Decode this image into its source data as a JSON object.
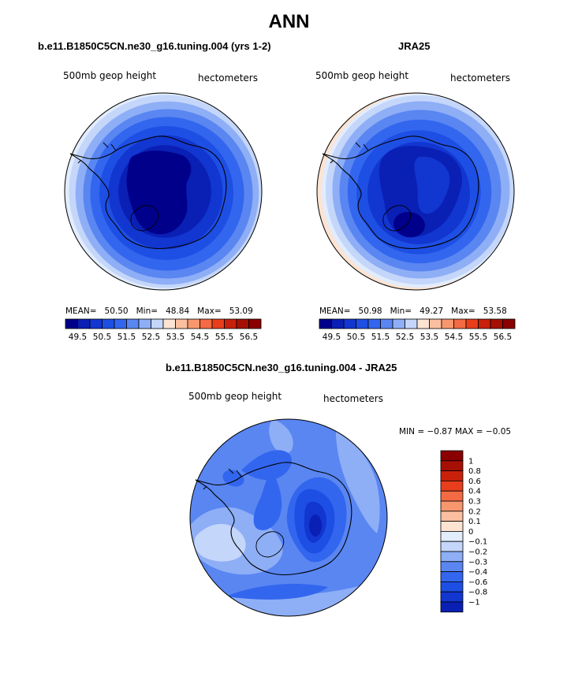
{
  "title": "ANN",
  "colors": {
    "blues": [
      "#00008b",
      "#0a1fb4",
      "#1236d0",
      "#1e4fe4",
      "#3366ee",
      "#5a86f2",
      "#8eaef6",
      "#c4d6fa",
      "#e1ecfd"
    ],
    "reds": [
      "#fde3d2",
      "#fbbfa0",
      "#f8976e",
      "#f36a43",
      "#e83e1c",
      "#c8200a",
      "#a61004",
      "#8a0000"
    ],
    "land_outline": "#000000"
  },
  "panels": [
    {
      "title": "b.e11.B1850C5CN.ne30_g16.tuning.004 (yrs 1-2)",
      "variable_label": "500mb geop height",
      "units_label": "hectometers",
      "mean_label": "MEAN=",
      "mean": "50.50",
      "min_label": "Min=",
      "min": "48.84",
      "max_label": "Max=",
      "max": "53.09"
    },
    {
      "title": "JRA25",
      "variable_label": "500mb geop height",
      "units_label": "hectometers",
      "mean_label": "MEAN=",
      "mean": "50.98",
      "min_label": "Min=",
      "min": "49.27",
      "max_label": "Max=",
      "max": "53.58"
    },
    {
      "title": "b.e11.B1850C5CN.ne30_g16.tuning.004 - JRA25",
      "variable_label": "500mb geop height",
      "units_label": "hectometers",
      "minmax_text": "MIN =  −0.87  MAX =  −0.05"
    }
  ],
  "chart_data": [
    {
      "type": "heatmap",
      "title": "b.e11.B1850C5CN.ne30_g16.tuning.004 (yrs 1-2)",
      "projection": "south polar stereographic",
      "variable": "500mb geop height",
      "units": "hectometers",
      "mean": 50.5,
      "min": 48.84,
      "max": 53.09,
      "contour_levels": [
        49.5,
        50,
        50.5,
        51,
        51.5,
        52,
        52.5,
        53,
        53.5,
        54,
        54.5,
        55,
        55.5,
        56,
        56.5
      ],
      "colorbar_tick_labels": [
        "49.5",
        "50.5",
        "51.5",
        "52.5",
        "53.5",
        "54.5",
        "55.5",
        "56.5"
      ]
    },
    {
      "type": "heatmap",
      "title": "JRA25",
      "projection": "south polar stereographic",
      "variable": "500mb geop height",
      "units": "hectometers",
      "mean": 50.98,
      "min": 49.27,
      "max": 53.58,
      "contour_levels": [
        49.5,
        50,
        50.5,
        51,
        51.5,
        52,
        52.5,
        53,
        53.5,
        54,
        54.5,
        55,
        55.5,
        56,
        56.5
      ],
      "colorbar_tick_labels": [
        "49.5",
        "50.5",
        "51.5",
        "52.5",
        "53.5",
        "54.5",
        "55.5",
        "56.5"
      ]
    },
    {
      "type": "heatmap",
      "title": "b.e11.B1850C5CN.ne30_g16.tuning.004 - JRA25",
      "projection": "south polar stereographic",
      "variable": "500mb geop height",
      "units": "hectometers",
      "min": -0.87,
      "max": -0.05,
      "contour_levels": [
        -1,
        -0.8,
        -0.6,
        -0.4,
        -0.3,
        -0.2,
        -0.1,
        0,
        0.1,
        0.2,
        0.3,
        0.4,
        0.6,
        0.8,
        1
      ],
      "colorbar_tick_labels": [
        "1",
        "0.8",
        "0.6",
        "0.4",
        "0.3",
        "0.2",
        "0.1",
        "0",
        "−0.1",
        "−0.2",
        "−0.3",
        "−0.4",
        "−0.6",
        "−0.8",
        "−1"
      ]
    }
  ]
}
